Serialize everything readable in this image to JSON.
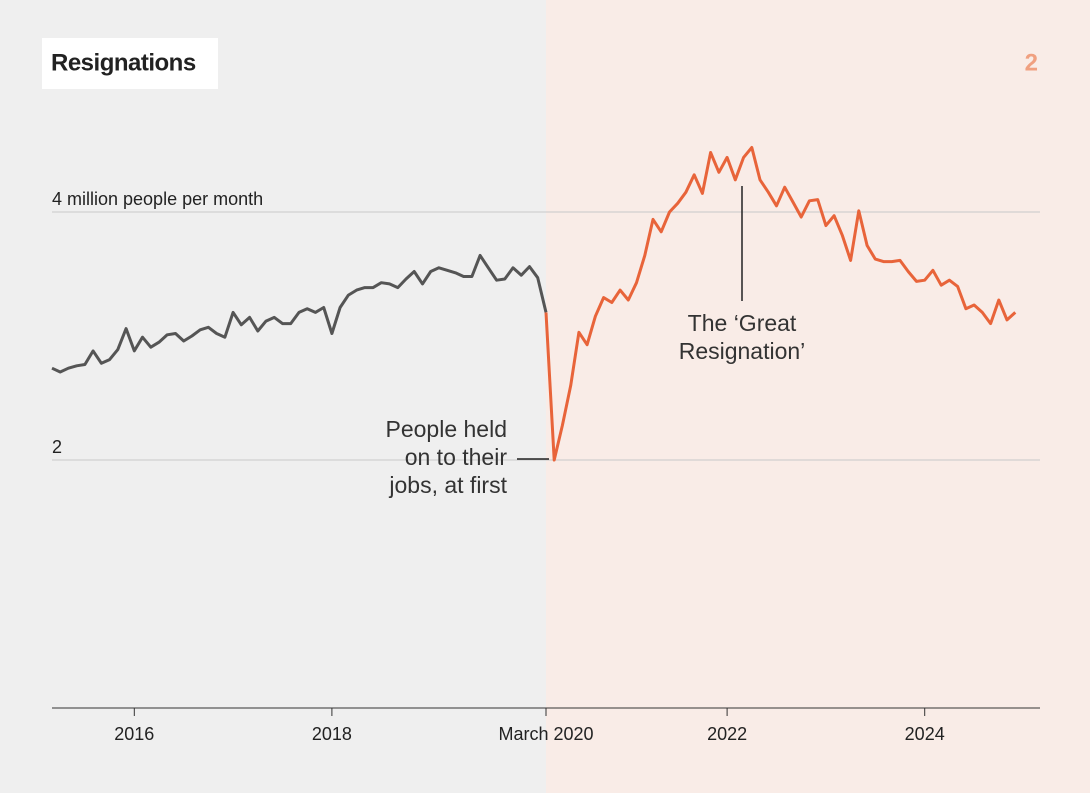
{
  "chart_data": {
    "type": "line",
    "title": "Resignations",
    "page_number": "2",
    "annotations": [
      {
        "lines": [
          "People held",
          "on to their",
          "jobs, at first"
        ]
      },
      {
        "lines": [
          "The ‘Great",
          "Resignation’"
        ]
      }
    ],
    "xlim": [
      2015.167,
      2025.167
    ],
    "xticks": [
      2016,
      2018,
      {
        "value": 2020.167,
        "label": "March 2020"
      },
      2022,
      2024
    ],
    "ylim": [
      0,
      5
    ],
    "yticks": [
      2,
      {
        "value": 4,
        "label": "4 million people per month"
      }
    ],
    "grid": true,
    "series": [
      {
        "color": "#555555",
        "x": [
          2015.167,
          2015.25,
          2015.333,
          2015.417,
          2015.5,
          2015.583,
          2015.667,
          2015.75,
          2015.833,
          2015.917,
          2016,
          2016.083,
          2016.167,
          2016.25,
          2016.333,
          2016.417,
          2016.5,
          2016.583,
          2016.667,
          2016.75,
          2016.833,
          2016.917,
          2017,
          2017.083,
          2017.167,
          2017.25,
          2017.333,
          2017.417,
          2017.5,
          2017.583,
          2017.667,
          2017.75,
          2017.833,
          2017.917,
          2018,
          2018.083,
          2018.167,
          2018.25,
          2018.333,
          2018.417,
          2018.5,
          2018.583,
          2018.667,
          2018.75,
          2018.833,
          2018.917,
          2019,
          2019.083,
          2019.167,
          2019.25,
          2019.333,
          2019.417,
          2019.5,
          2019.583,
          2019.667,
          2019.75,
          2019.833,
          2019.917,
          2020,
          2020.083,
          2020.167
        ],
        "values": [
          2.74,
          2.71,
          2.74,
          2.76,
          2.77,
          2.88,
          2.78,
          2.81,
          2.89,
          3.06,
          2.88,
          2.99,
          2.91,
          2.95,
          3.01,
          3.02,
          2.96,
          3.0,
          3.05,
          3.07,
          3.02,
          2.99,
          3.19,
          3.09,
          3.15,
          3.04,
          3.12,
          3.15,
          3.1,
          3.1,
          3.19,
          3.22,
          3.19,
          3.23,
          3.02,
          3.23,
          3.33,
          3.37,
          3.39,
          3.39,
          3.43,
          3.42,
          3.39,
          3.46,
          3.52,
          3.42,
          3.52,
          3.55,
          3.53,
          3.51,
          3.48,
          3.48,
          3.65,
          3.55,
          3.45,
          3.46,
          3.55,
          3.49,
          3.56,
          3.47,
          3.19
        ]
      },
      {
        "color": "#e8643a",
        "x": [
          2020.167,
          2020.25,
          2020.333,
          2020.417,
          2020.5,
          2020.583,
          2020.667,
          2020.75,
          2020.833,
          2020.917,
          2021,
          2021.083,
          2021.167,
          2021.25,
          2021.333,
          2021.417,
          2021.5,
          2021.583,
          2021.667,
          2021.75,
          2021.833,
          2021.917,
          2022,
          2022.083,
          2022.167,
          2022.25,
          2022.333,
          2022.417,
          2022.5,
          2022.583,
          2022.667,
          2022.75,
          2022.833,
          2022.917,
          2023,
          2023.083,
          2023.167,
          2023.25,
          2023.333,
          2023.417,
          2023.5,
          2023.583,
          2023.667,
          2023.75,
          2023.833,
          2023.917,
          2024,
          2024.083,
          2024.167,
          2024.25,
          2024.333,
          2024.417,
          2024.5,
          2024.583,
          2024.667,
          2024.75,
          2024.833,
          2024.917
        ],
        "values": [
          3.19,
          2.0,
          2.28,
          2.6,
          3.03,
          2.93,
          3.16,
          3.31,
          3.27,
          3.37,
          3.29,
          3.43,
          3.65,
          3.94,
          3.84,
          4.0,
          4.07,
          4.16,
          4.3,
          4.15,
          4.48,
          4.32,
          4.44,
          4.26,
          4.44,
          4.52,
          4.26,
          4.16,
          4.05,
          4.2,
          4.08,
          3.96,
          4.09,
          4.1,
          3.89,
          3.97,
          3.81,
          3.61,
          4.01,
          3.73,
          3.62,
          3.6,
          3.6,
          3.61,
          3.52,
          3.44,
          3.45,
          3.53,
          3.41,
          3.45,
          3.4,
          3.22,
          3.25,
          3.19,
          3.1,
          3.29,
          3.13,
          3.19
        ]
      }
    ]
  }
}
